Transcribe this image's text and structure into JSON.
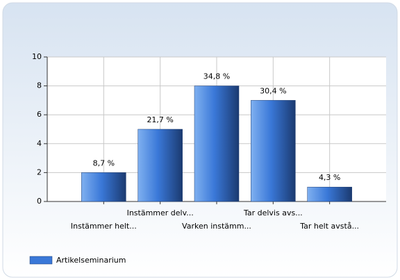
{
  "chart_data": {
    "type": "bar",
    "categories": [
      "Instämmer helt...",
      "Instämmer delv...",
      "Varken instämm...",
      "Tar delvis avs...",
      "Tar helt avstå..."
    ],
    "values": [
      2,
      5,
      8,
      7,
      1
    ],
    "value_labels": [
      "8,7 %",
      "21,7 %",
      "34,8 %",
      "30,4 %",
      "4,3 %"
    ],
    "series_name": "Artikelseminarium",
    "color": "#3a78d8",
    "ylim": [
      0,
      10
    ],
    "yticks": [
      0,
      2,
      4,
      6,
      8,
      10
    ],
    "grid": true,
    "legend": "bottom-left"
  }
}
